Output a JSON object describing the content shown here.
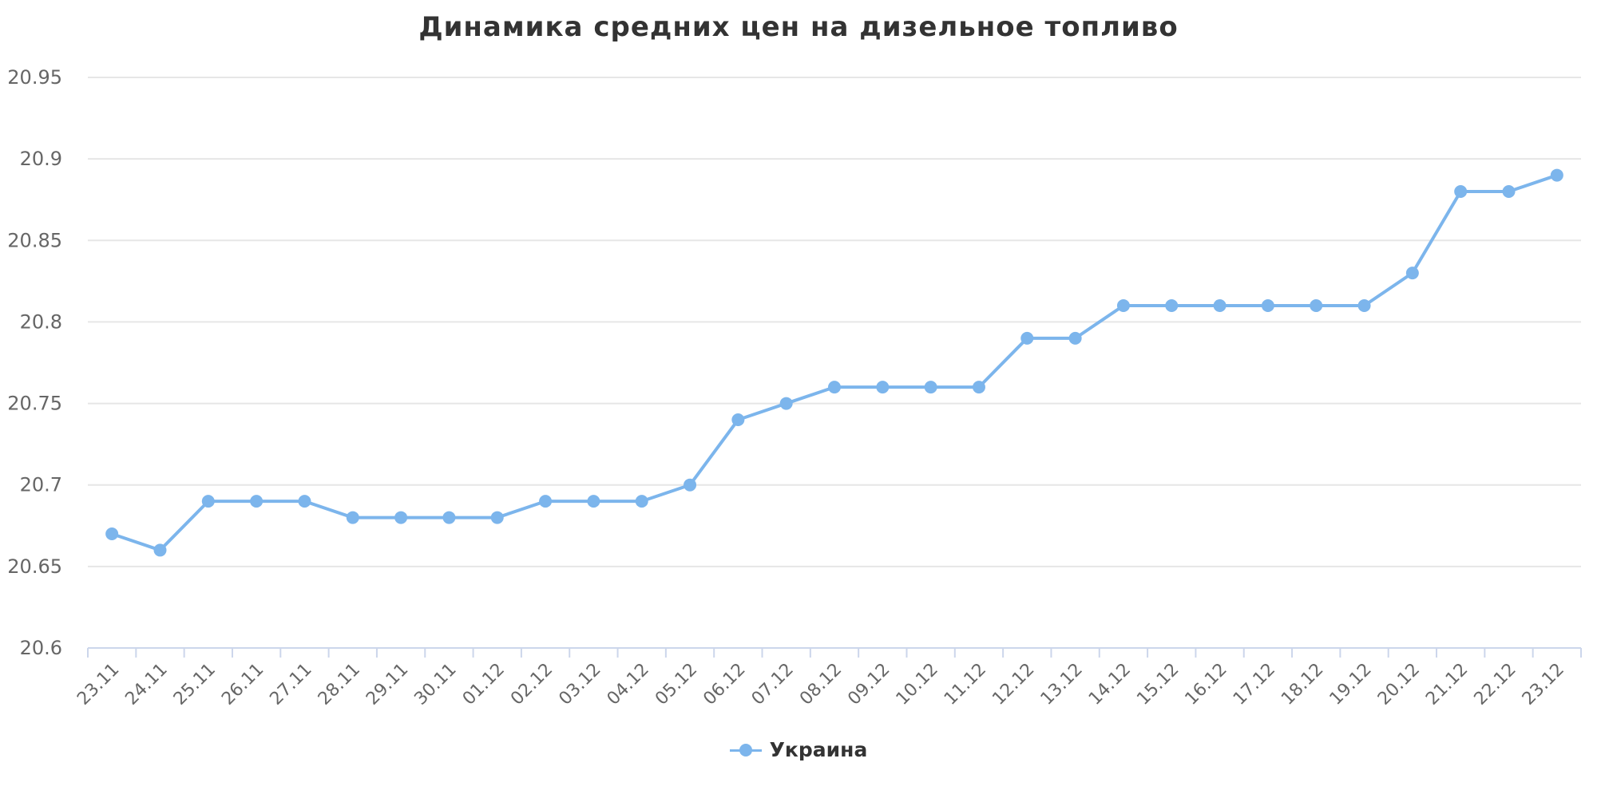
{
  "chart_data": {
    "type": "line",
    "title": "Динамика средних цен на дизельное топливо",
    "xlabel": "",
    "ylabel": "",
    "ylim": [
      20.6,
      20.95
    ],
    "y_ticks": [
      "20.6",
      "20.65",
      "20.7",
      "20.75",
      "20.8",
      "20.85",
      "20.9",
      "20.95"
    ],
    "grid": true,
    "legend_position": "bottom-center",
    "categories": [
      "23.11",
      "24.11",
      "25.11",
      "26.11",
      "27.11",
      "28.11",
      "29.11",
      "30.11",
      "01.12",
      "02.12",
      "03.12",
      "04.12",
      "05.12",
      "06.12",
      "07.12",
      "08.12",
      "09.12",
      "10.12",
      "11.12",
      "12.12",
      "13.12",
      "14.12",
      "15.12",
      "16.12",
      "17.12",
      "18.12",
      "19.12",
      "20.12",
      "21.12",
      "22.12",
      "23.12"
    ],
    "series": [
      {
        "name": "Украина",
        "color": "#7cb5ec",
        "values": [
          20.67,
          20.66,
          20.69,
          20.69,
          20.69,
          20.68,
          20.68,
          20.68,
          20.68,
          20.69,
          20.69,
          20.69,
          20.7,
          20.74,
          20.75,
          20.76,
          20.76,
          20.76,
          20.76,
          20.79,
          20.79,
          20.81,
          20.81,
          20.81,
          20.81,
          20.81,
          20.81,
          20.83,
          20.88,
          20.88,
          20.89
        ]
      }
    ]
  }
}
